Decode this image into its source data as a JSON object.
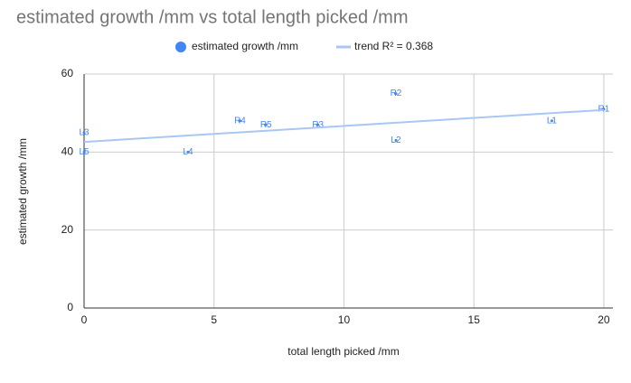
{
  "chart_data": {
    "type": "scatter",
    "title": "estimated growth /mm vs total length picked /mm",
    "x_label": "total length picked /mm",
    "y_label": "estimated growth /mm",
    "xlim": [
      0,
      20.35
    ],
    "ylim": [
      0,
      60
    ],
    "xticks": [
      0,
      5,
      10,
      15,
      20
    ],
    "yticks": [
      0,
      20,
      40,
      60
    ],
    "grid": true,
    "legend": "top",
    "series": [
      {
        "name": "estimated growth /mm",
        "color": "#4285f4",
        "x": [
          20,
          12,
          9,
          6,
          7,
          18,
          12,
          0,
          4,
          0
        ],
        "values": [
          51,
          55,
          47,
          48,
          47,
          48,
          43,
          45,
          40,
          40
        ],
        "point_labels": [
          "R1",
          "R2",
          "R3",
          "R4",
          "R5",
          "L1",
          "L2",
          "L3",
          "L4",
          "L5"
        ]
      },
      {
        "name": "trend R² = 0.368",
        "color": "#a8c7f5",
        "x": [
          0,
          20
        ],
        "values": [
          42.6,
          50.8
        ]
      }
    ]
  }
}
